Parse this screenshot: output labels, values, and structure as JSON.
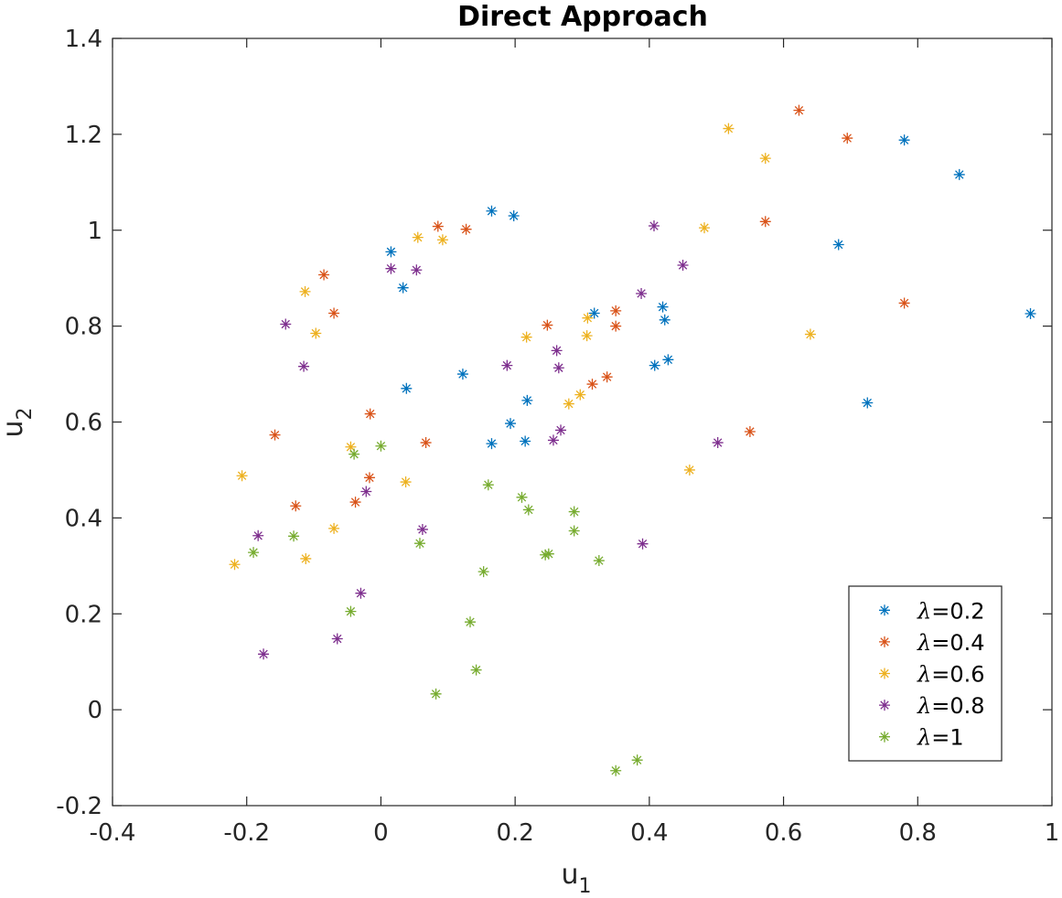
{
  "chart_data": {
    "type": "scatter",
    "title": "Direct Approach",
    "xlabel": {
      "base": "u",
      "sub": "1"
    },
    "ylabel": {
      "base": "u",
      "sub": "2"
    },
    "xlim": [
      -0.4,
      1
    ],
    "ylim": [
      -0.2,
      1.4
    ],
    "xticks": [
      -0.4,
      -0.2,
      0,
      0.2,
      0.4,
      0.6,
      0.8,
      1
    ],
    "xtick_labels": [
      "-0.4",
      "-0.2",
      "0",
      "0.2",
      "0.4",
      "0.6",
      "0.8",
      "1"
    ],
    "yticks": [
      -0.2,
      0,
      0.2,
      0.4,
      0.6,
      0.8,
      1,
      1.2,
      1.4
    ],
    "ytick_labels": [
      "-0.2",
      "0",
      "0.2",
      "0.4",
      "0.6",
      "0.8",
      "1",
      "1.2",
      "1.4"
    ],
    "marker": "asterisk",
    "grid": false,
    "legend_position": "bottom-right",
    "series": [
      {
        "name": "λ=0.2",
        "lambda_symbol": "λ",
        "lambda_value": "=0.2",
        "color": "#0072BD",
        "x": [
          0.015,
          0.033,
          0.165,
          0.198,
          0.038,
          0.122,
          0.218,
          0.193,
          0.165,
          0.215,
          0.318,
          0.42,
          0.423,
          0.408,
          0.428,
          0.682,
          0.725,
          0.78,
          0.862,
          0.968
        ],
        "y": [
          0.955,
          0.88,
          1.04,
          1.03,
          0.67,
          0.7,
          0.645,
          0.597,
          0.555,
          0.56,
          0.827,
          0.84,
          0.813,
          0.718,
          0.73,
          0.97,
          0.64,
          1.188,
          1.116,
          0.826
        ]
      },
      {
        "name": "λ=0.4",
        "lambda_symbol": "λ",
        "lambda_value": "=0.4",
        "color": "#D95319",
        "x": [
          -0.158,
          -0.085,
          -0.07,
          -0.016,
          -0.127,
          -0.038,
          -0.017,
          0.067,
          0.085,
          0.127,
          0.248,
          0.315,
          0.337,
          0.35,
          0.35,
          0.55,
          0.573,
          0.623,
          0.695,
          0.78
        ],
        "y": [
          0.573,
          0.907,
          0.827,
          0.617,
          0.425,
          0.433,
          0.484,
          0.557,
          1.008,
          1.002,
          0.802,
          0.679,
          0.694,
          0.832,
          0.8,
          0.58,
          1.018,
          1.25,
          1.192,
          0.848
        ]
      },
      {
        "name": "λ=0.6",
        "lambda_symbol": "λ",
        "lambda_value": "=0.6",
        "color": "#EDB120",
        "x": [
          -0.218,
          -0.207,
          -0.113,
          -0.112,
          -0.097,
          -0.07,
          -0.045,
          0.037,
          0.055,
          0.092,
          0.217,
          0.28,
          0.297,
          0.308,
          0.307,
          0.46,
          0.482,
          0.518,
          0.573,
          0.64
        ],
        "y": [
          0.303,
          0.488,
          0.872,
          0.315,
          0.785,
          0.378,
          0.548,
          0.475,
          0.985,
          0.98,
          0.777,
          0.638,
          0.657,
          0.817,
          0.78,
          0.5,
          1.005,
          1.212,
          1.15,
          0.783
        ]
      },
      {
        "name": "λ=0.8",
        "lambda_symbol": "λ",
        "lambda_value": "=0.8",
        "color": "#7E2F8E",
        "x": [
          -0.175,
          -0.183,
          -0.142,
          -0.115,
          -0.065,
          -0.03,
          -0.022,
          0.015,
          0.053,
          0.062,
          0.188,
          0.257,
          0.262,
          0.265,
          0.268,
          0.388,
          0.39,
          0.407,
          0.45,
          0.502
        ],
        "y": [
          0.116,
          0.363,
          0.804,
          0.716,
          0.148,
          0.243,
          0.455,
          0.92,
          0.917,
          0.376,
          0.718,
          0.562,
          0.749,
          0.713,
          0.583,
          0.868,
          0.346,
          1.009,
          0.927,
          0.557
        ]
      },
      {
        "name": "λ=1",
        "lambda_symbol": "λ",
        "lambda_value": "=1",
        "color": "#77AC30",
        "x": [
          -0.19,
          -0.13,
          -0.045,
          -0.04,
          0,
          0.058,
          0.082,
          0.133,
          0.142,
          0.153,
          0.16,
          0.21,
          0.22,
          0.245,
          0.25,
          0.288,
          0.288,
          0.325,
          0.35,
          0.382
        ],
        "y": [
          0.328,
          0.362,
          0.205,
          0.533,
          0.55,
          0.347,
          0.033,
          0.183,
          0.083,
          0.288,
          0.469,
          0.443,
          0.417,
          0.323,
          0.325,
          0.413,
          0.373,
          0.311,
          -0.127,
          -0.105
        ]
      }
    ]
  }
}
